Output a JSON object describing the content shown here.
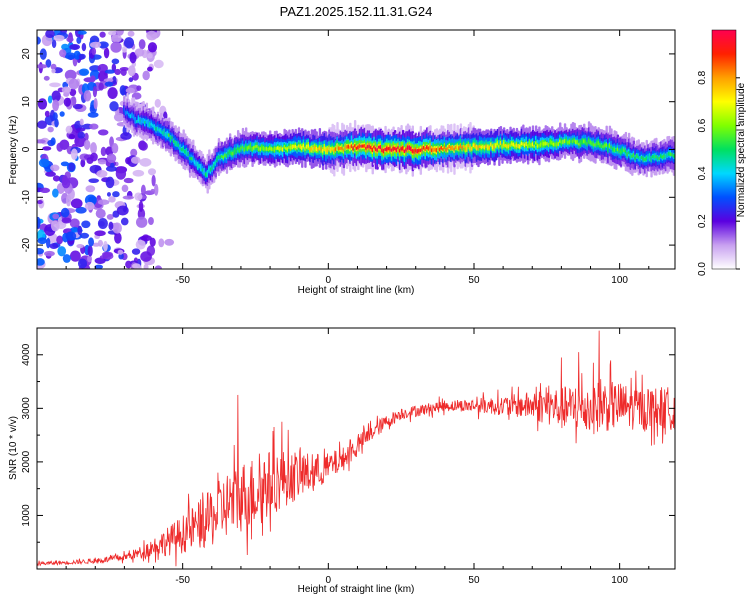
{
  "title": "PAZ1.2025.152.11.31.G24",
  "chart_data": [
    {
      "type": "heatmap",
      "xlabel": "Height of straight line (km)",
      "ylabel": "Frequency (Hz)",
      "xlim": [
        -100,
        119
      ],
      "ylim": [
        -25,
        25
      ],
      "xticks": [
        -50,
        0,
        50,
        100
      ],
      "yticks": [
        -20,
        -10,
        0,
        10,
        20
      ],
      "grid": false,
      "colorbar": {
        "label": "Normalized spectral amplitude",
        "range": [
          0.0,
          1.0
        ],
        "ticks": [
          0.0,
          0.2,
          0.4,
          0.6,
          0.8
        ],
        "colors": [
          "#ffffff",
          "#c8a0f0",
          "#5a00e0",
          "#0050ff",
          "#00d8ff",
          "#00e060",
          "#80ff00",
          "#ffff00",
          "#ffa000",
          "#ff2000",
          "#ff0050"
        ]
      },
      "ridge": {
        "height_km": [
          -100,
          -80,
          -70,
          -65,
          -60,
          -55,
          -50,
          -45,
          -42,
          -40,
          -38,
          -35,
          -30,
          -25,
          -20,
          -10,
          0,
          10,
          20,
          30,
          40,
          50,
          60,
          70,
          80,
          90,
          100,
          105,
          110,
          115,
          119
        ],
        "frequency_hz": [
          0,
          10,
          8,
          6,
          5,
          3,
          0,
          -3,
          -5,
          -4,
          -2,
          -1,
          0,
          0.5,
          0,
          0.5,
          0,
          0.5,
          0,
          0,
          0.3,
          0.5,
          1,
          1,
          1.5,
          1.5,
          0,
          -1.5,
          -2,
          -1.5,
          -1
        ],
        "peak_amplitude": [
          0.25,
          0.3,
          0.35,
          0.4,
          0.45,
          0.5,
          0.5,
          0.45,
          0.45,
          0.45,
          0.5,
          0.55,
          0.55,
          0.6,
          0.6,
          0.7,
          0.75,
          0.9,
          0.95,
          0.95,
          0.8,
          0.75,
          0.7,
          0.65,
          0.6,
          0.55,
          0.55,
          0.5,
          0.5,
          0.5,
          0.5
        ]
      },
      "noise_region_km": [
        -100,
        -60
      ]
    },
    {
      "type": "line",
      "xlabel": "Height of straight line (km)",
      "ylabel": "SNR (10 * v/v)",
      "xlim": [
        -100,
        119
      ],
      "ylim": [
        0,
        4500
      ],
      "xticks": [
        -50,
        0,
        50,
        100
      ],
      "yticks": [
        1000,
        2000,
        3000,
        4000
      ],
      "grid": false,
      "series": [
        {
          "color": "#ee2b2b",
          "x": [
            -100,
            -90,
            -80,
            -70,
            -65,
            -60,
            -55,
            -50,
            -45,
            -40,
            -35,
            -30,
            -25,
            -20,
            -15,
            -10,
            -5,
            0,
            5,
            10,
            15,
            20,
            25,
            30,
            35,
            40,
            45,
            50,
            55,
            60,
            65,
            70,
            75,
            80,
            85,
            90,
            95,
            100,
            105,
            110,
            115,
            119
          ],
          "y_center": [
            100,
            120,
            150,
            220,
            300,
            420,
            520,
            650,
            800,
            950,
            1200,
            1350,
            1450,
            1600,
            1700,
            1750,
            1800,
            1900,
            2050,
            2300,
            2550,
            2750,
            2900,
            2950,
            3000,
            3050,
            3050,
            3050,
            3050,
            3050,
            3050,
            3050,
            3050,
            3000,
            3000,
            3000,
            3050,
            3050,
            3000,
            3000,
            3000,
            3000
          ],
          "y_spread": [
            40,
            40,
            50,
            80,
            120,
            200,
            300,
            400,
            500,
            600,
            700,
            750,
            750,
            700,
            600,
            500,
            400,
            300,
            250,
            200,
            180,
            150,
            120,
            120,
            120,
            120,
            120,
            150,
            180,
            200,
            250,
            300,
            400,
            450,
            500,
            550,
            550,
            500,
            450,
            450,
            450,
            450
          ],
          "spikes": [
            {
              "x": -31,
              "y": 3250
            },
            {
              "x": -16,
              "y": 2750
            },
            {
              "x": 93,
              "y": 4450
            },
            {
              "x": 86,
              "y": 4050
            },
            {
              "x": 80,
              "y": 3950
            }
          ]
        }
      ]
    }
  ]
}
